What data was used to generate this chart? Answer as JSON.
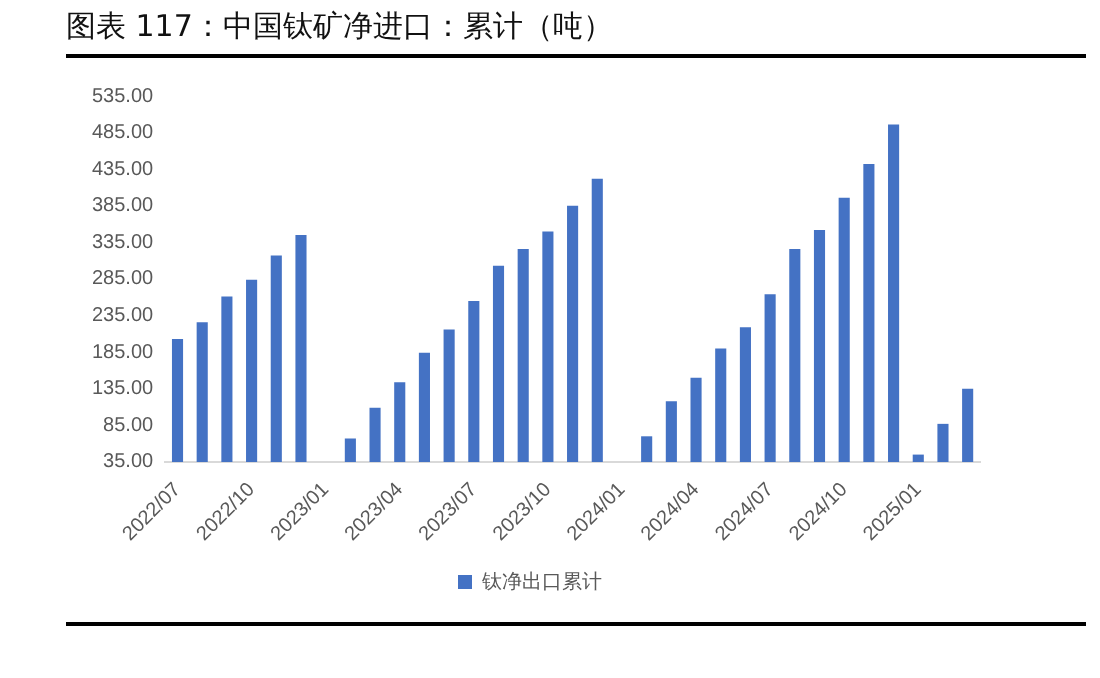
{
  "chart_data": {
    "type": "bar",
    "title": "图表 117：中国钛矿净进口：累计（吨）",
    "categories": [
      "2022/07",
      null,
      null,
      "2022/10",
      null,
      null,
      "2023/01",
      null,
      null,
      "2023/04",
      null,
      null,
      "2023/07",
      null,
      null,
      "2023/10",
      null,
      null,
      "2024/01",
      null,
      null,
      "2024/04",
      null,
      null,
      "2024/07",
      null,
      null,
      "2024/10",
      null,
      null,
      "2025/01",
      null,
      null
    ],
    "series": [
      {
        "name": "钛净出口累计",
        "color": "#4472c4",
        "values": [
          203,
          226,
          261,
          284,
          317,
          345,
          null,
          67,
          109,
          144,
          184,
          216,
          255,
          303,
          326,
          350,
          385,
          422,
          null,
          70,
          118,
          150,
          190,
          219,
          264,
          326,
          352,
          396,
          442,
          496,
          45,
          87,
          135
        ]
      }
    ],
    "ylim": [
      35,
      535
    ],
    "yticks": [
      {
        "value": 35,
        "label": "35.00"
      },
      {
        "value": 85,
        "label": "85.00"
      },
      {
        "value": 135,
        "label": "135.00"
      },
      {
        "value": 185,
        "label": "185.00"
      },
      {
        "value": 235,
        "label": "235.00"
      },
      {
        "value": 285,
        "label": "285.00"
      },
      {
        "value": 335,
        "label": "335.00"
      },
      {
        "value": 385,
        "label": "385.00"
      },
      {
        "value": 435,
        "label": "435.00"
      },
      {
        "value": 485,
        "label": "485.00"
      },
      {
        "value": 535,
        "label": "535.00"
      }
    ],
    "grid": false,
    "legend": "bottom"
  }
}
